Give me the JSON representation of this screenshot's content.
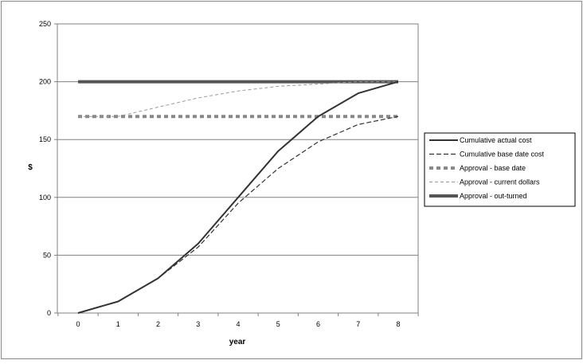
{
  "chart_data": {
    "type": "line",
    "xlabel": "year",
    "ylabel": "$",
    "xlim": [
      0,
      8
    ],
    "ylim": [
      0,
      250
    ],
    "x_ticks": [
      "0",
      "1",
      "2",
      "3",
      "4",
      "5",
      "6",
      "7",
      "8"
    ],
    "y_ticks": [
      "0",
      "50",
      "100",
      "150",
      "200",
      "250"
    ],
    "grid": "horizontal",
    "legend_position": "right",
    "x": [
      0,
      1,
      2,
      3,
      4,
      5,
      6,
      7,
      8
    ],
    "series": [
      {
        "name": "Cumulative actual cost",
        "values": [
          0,
          10,
          30,
          60,
          100,
          140,
          170,
          190,
          200
        ],
        "style": "solid",
        "color": "#333333"
      },
      {
        "name": "Cumulative base date cost",
        "values": [
          0,
          10,
          30,
          57,
          95,
          125,
          148,
          163,
          170
        ],
        "style": "dashed",
        "color": "#333333"
      },
      {
        "name": "Approval - base date",
        "values": [
          170,
          170,
          170,
          170,
          170,
          170,
          170,
          170,
          170
        ],
        "style": "dotted-thick",
        "color": "#888888"
      },
      {
        "name": "Approval - current dollars",
        "values": [
          170,
          170,
          178,
          186,
          192,
          196,
          198,
          200,
          200
        ],
        "style": "dashed-light",
        "color": "#999999"
      },
      {
        "name": "Approval - out-turned",
        "values": [
          200,
          200,
          200,
          200,
          200,
          200,
          200,
          200,
          200
        ],
        "style": "thick",
        "color": "#555555"
      }
    ]
  }
}
